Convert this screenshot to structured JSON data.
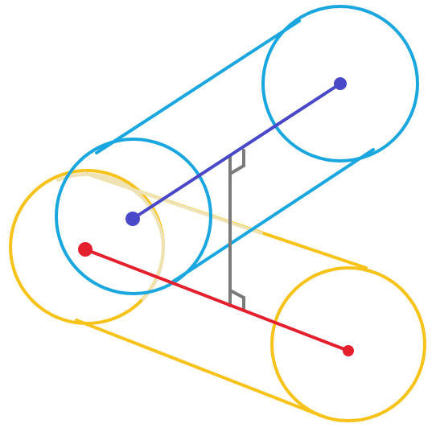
{
  "diagram": {
    "description_free": true,
    "colors": {
      "blue_cylinder": "#1aa7df",
      "yellow_cylinder": "#f7c21a",
      "yellow_hidden": "#efe3b6",
      "blue_axis": "#4848c8",
      "red_axis": "#e5202e",
      "perpendicular": "#7a7a7a",
      "background": "#ffffff"
    },
    "elements": [
      "blue-cylinder",
      "yellow-cylinder",
      "blue-axis-segment",
      "red-axis-segment",
      "common-perpendicular"
    ]
  }
}
